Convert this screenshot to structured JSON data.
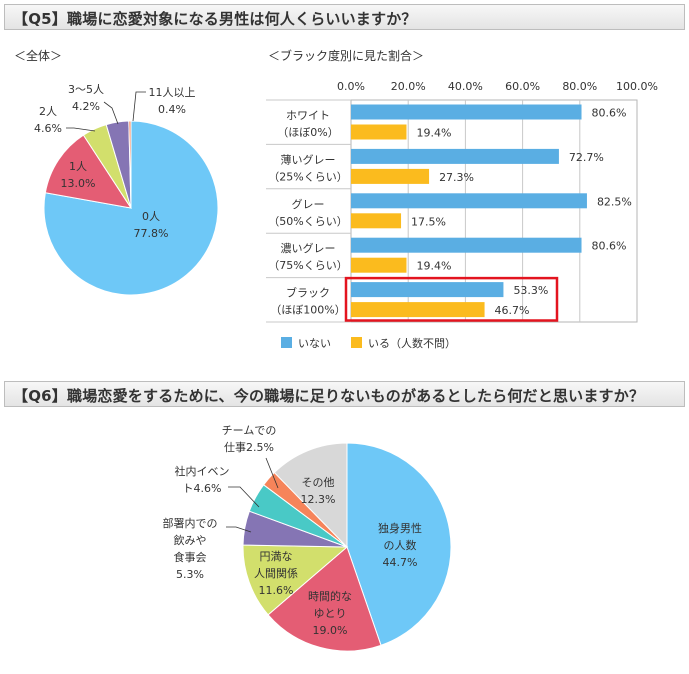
{
  "q5": {
    "title": "【Q5】職場に恋愛対象になる男性は何人くらいいますか？",
    "overall_label": "＜全体＞",
    "breakdown_label": "＜ブラック度別に見た割合＞"
  },
  "q6": {
    "title": "【Q6】職場恋愛をするために、今の職場に足りないものがあるとしたら何だと思いますか？"
  },
  "colors": {
    "blue": "#6ec8f7",
    "red": "#e45d74",
    "lime": "#d2df6c",
    "purple": "#8575b4",
    "teal": "#49c9c6",
    "orange": "#f6845a",
    "gray": "#d8d8d8",
    "bar_blue": "#5aaee3",
    "bar_yellow": "#fbbb1e",
    "highlight": "#e3141f"
  },
  "chart_data": [
    {
      "type": "pie",
      "title": "＜全体＞",
      "slices": [
        {
          "label": "0人",
          "value": 77.8,
          "value_label": "77.8%"
        },
        {
          "label": "1人",
          "value": 13.0,
          "value_label": "13.0%"
        },
        {
          "label": "2人",
          "value": 4.6,
          "value_label": "4.6%"
        },
        {
          "label": "3〜5人",
          "value": 4.2,
          "value_label": "4.2%"
        },
        {
          "label": "11人以上",
          "value": 0.4,
          "value_label": "0.4%"
        }
      ]
    },
    {
      "type": "bar",
      "orientation": "horizontal",
      "title": "＜ブラック度別に見た割合＞",
      "xlim": [
        0,
        100
      ],
      "ticks": [
        "0.0%",
        "20.0%",
        "40.0%",
        "60.0%",
        "80.0%",
        "100.0%"
      ],
      "categories": [
        {
          "line1": "ホワイト",
          "line2": "（ほぼ0%）"
        },
        {
          "line1": "薄いグレー",
          "line2": "（25%くらい）"
        },
        {
          "line1": "グレー",
          "line2": "（50%くらい）"
        },
        {
          "line1": "濃いグレー",
          "line2": "（75%くらい）"
        },
        {
          "line1": "ブラック",
          "line2": "（ほぼ100%）"
        }
      ],
      "series": [
        {
          "name": "いない",
          "values": [
            80.6,
            72.7,
            82.5,
            80.6,
            53.3
          ],
          "value_labels": [
            "80.6%",
            "72.7%",
            "82.5%",
            "80.6%",
            "53.3%"
          ]
        },
        {
          "name": "いる（人数不問）",
          "values": [
            19.4,
            27.3,
            17.5,
            19.4,
            46.7
          ],
          "value_labels": [
            "19.4%",
            "27.3%",
            "17.5%",
            "19.4%",
            "46.7%"
          ]
        }
      ],
      "highlighted_category": 4,
      "grid": true,
      "legend": "bottom-left"
    },
    {
      "type": "pie",
      "slices": [
        {
          "label_lines": [
            "独身男性",
            "の人数"
          ],
          "value": 44.7,
          "value_label": "44.7%"
        },
        {
          "label_lines": [
            "時間的な",
            "ゆとり"
          ],
          "value": 19.0,
          "value_label": "19.0%"
        },
        {
          "label_lines": [
            "円満な",
            "人間関係"
          ],
          "value": 11.6,
          "value_label": "11.6%"
        },
        {
          "label_lines": [
            "部署内での",
            "飲みや",
            "食事会"
          ],
          "value": 5.3,
          "value_label": "5.3%"
        },
        {
          "label_lines": [
            "社内イベン",
            "ト"
          ],
          "value": 4.6,
          "value_label": "4.6%"
        },
        {
          "label_lines": [
            "チームでの",
            "仕事"
          ],
          "value": 2.5,
          "value_label": "2.5%"
        },
        {
          "label_lines": [
            "その他"
          ],
          "value": 12.3,
          "value_label": "12.3%"
        }
      ]
    }
  ]
}
